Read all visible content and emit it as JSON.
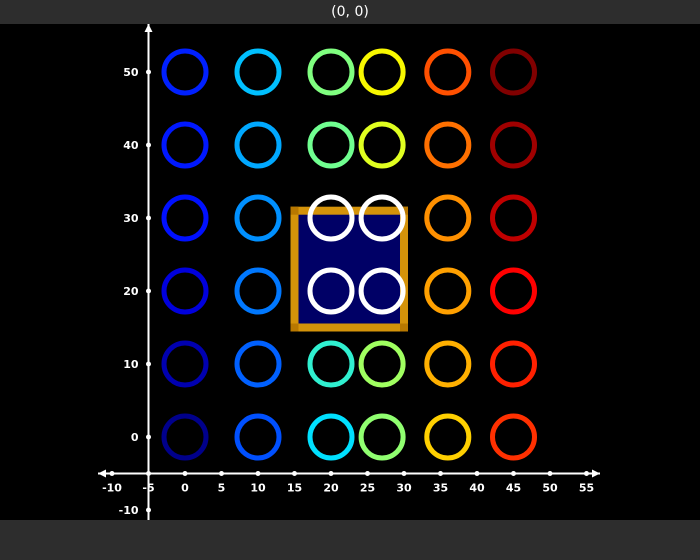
{
  "window": {
    "title": "(0, 0)"
  },
  "chart_data": {
    "type": "scatter",
    "title": "",
    "xlabel": "",
    "ylabel": "",
    "xlim": [
      -12,
      57
    ],
    "ylim": [
      -12,
      55
    ],
    "x_ticks": [
      -10,
      -5,
      0,
      5,
      10,
      15,
      20,
      25,
      30,
      35,
      40,
      45,
      50,
      55
    ],
    "y_ticks": [
      -10,
      0,
      10,
      20,
      30,
      40,
      50
    ],
    "grid": false,
    "marker": "hollow-ring",
    "x": [
      0,
      10,
      20,
      27,
      36,
      45
    ],
    "y": [
      0,
      10,
      20,
      27,
      36,
      45
    ],
    "rings": [
      {
        "x": 0,
        "y": 0,
        "color": "#00008b"
      },
      {
        "x": 0,
        "y": 10,
        "color": "#0000b0"
      },
      {
        "x": 0,
        "y": 20,
        "color": "#0000dd"
      },
      {
        "x": 0,
        "y": 30,
        "color": "#0010ff"
      },
      {
        "x": 0,
        "y": 40,
        "color": "#0018ff"
      },
      {
        "x": 0,
        "y": 50,
        "color": "#0020ff"
      },
      {
        "x": 10,
        "y": 0,
        "color": "#0050ff"
      },
      {
        "x": 10,
        "y": 10,
        "color": "#0060ff"
      },
      {
        "x": 10,
        "y": 20,
        "color": "#0078ff"
      },
      {
        "x": 10,
        "y": 30,
        "color": "#0090ff"
      },
      {
        "x": 10,
        "y": 40,
        "color": "#00a8ff"
      },
      {
        "x": 10,
        "y": 50,
        "color": "#00c0ff"
      },
      {
        "x": 20,
        "y": 0,
        "color": "#00e0ff"
      },
      {
        "x": 20,
        "y": 10,
        "color": "#30f0d0"
      },
      {
        "x": 20,
        "y": 20,
        "color": "#ffffff"
      },
      {
        "x": 20,
        "y": 30,
        "color": "#ffffff"
      },
      {
        "x": 20,
        "y": 40,
        "color": "#70ff90"
      },
      {
        "x": 20,
        "y": 50,
        "color": "#80ff80"
      },
      {
        "x": 27,
        "y": 0,
        "color": "#90ff70"
      },
      {
        "x": 27,
        "y": 10,
        "color": "#a0ff60"
      },
      {
        "x": 27,
        "y": 20,
        "color": "#ffffff"
      },
      {
        "x": 27,
        "y": 30,
        "color": "#ffffff"
      },
      {
        "x": 27,
        "y": 40,
        "color": "#e0ff20"
      },
      {
        "x": 27,
        "y": 50,
        "color": "#f8f800"
      },
      {
        "x": 36,
        "y": 0,
        "color": "#ffd000"
      },
      {
        "x": 36,
        "y": 10,
        "color": "#ffb000"
      },
      {
        "x": 36,
        "y": 20,
        "color": "#ffa000"
      },
      {
        "x": 36,
        "y": 30,
        "color": "#ff9000"
      },
      {
        "x": 36,
        "y": 40,
        "color": "#ff7000"
      },
      {
        "x": 36,
        "y": 50,
        "color": "#ff5000"
      },
      {
        "x": 45,
        "y": 0,
        "color": "#ff3000"
      },
      {
        "x": 45,
        "y": 10,
        "color": "#ff2000"
      },
      {
        "x": 45,
        "y": 20,
        "color": "#ff0000"
      },
      {
        "x": 45,
        "y": 30,
        "color": "#c00000"
      },
      {
        "x": 45,
        "y": 40,
        "color": "#a00000"
      },
      {
        "x": 45,
        "y": 50,
        "color": "#800000"
      }
    ],
    "selection": {
      "x_range": [
        15,
        30
      ],
      "y_range": [
        15,
        31
      ],
      "border_color": "#d4930a",
      "fill_color": "#000066"
    }
  }
}
